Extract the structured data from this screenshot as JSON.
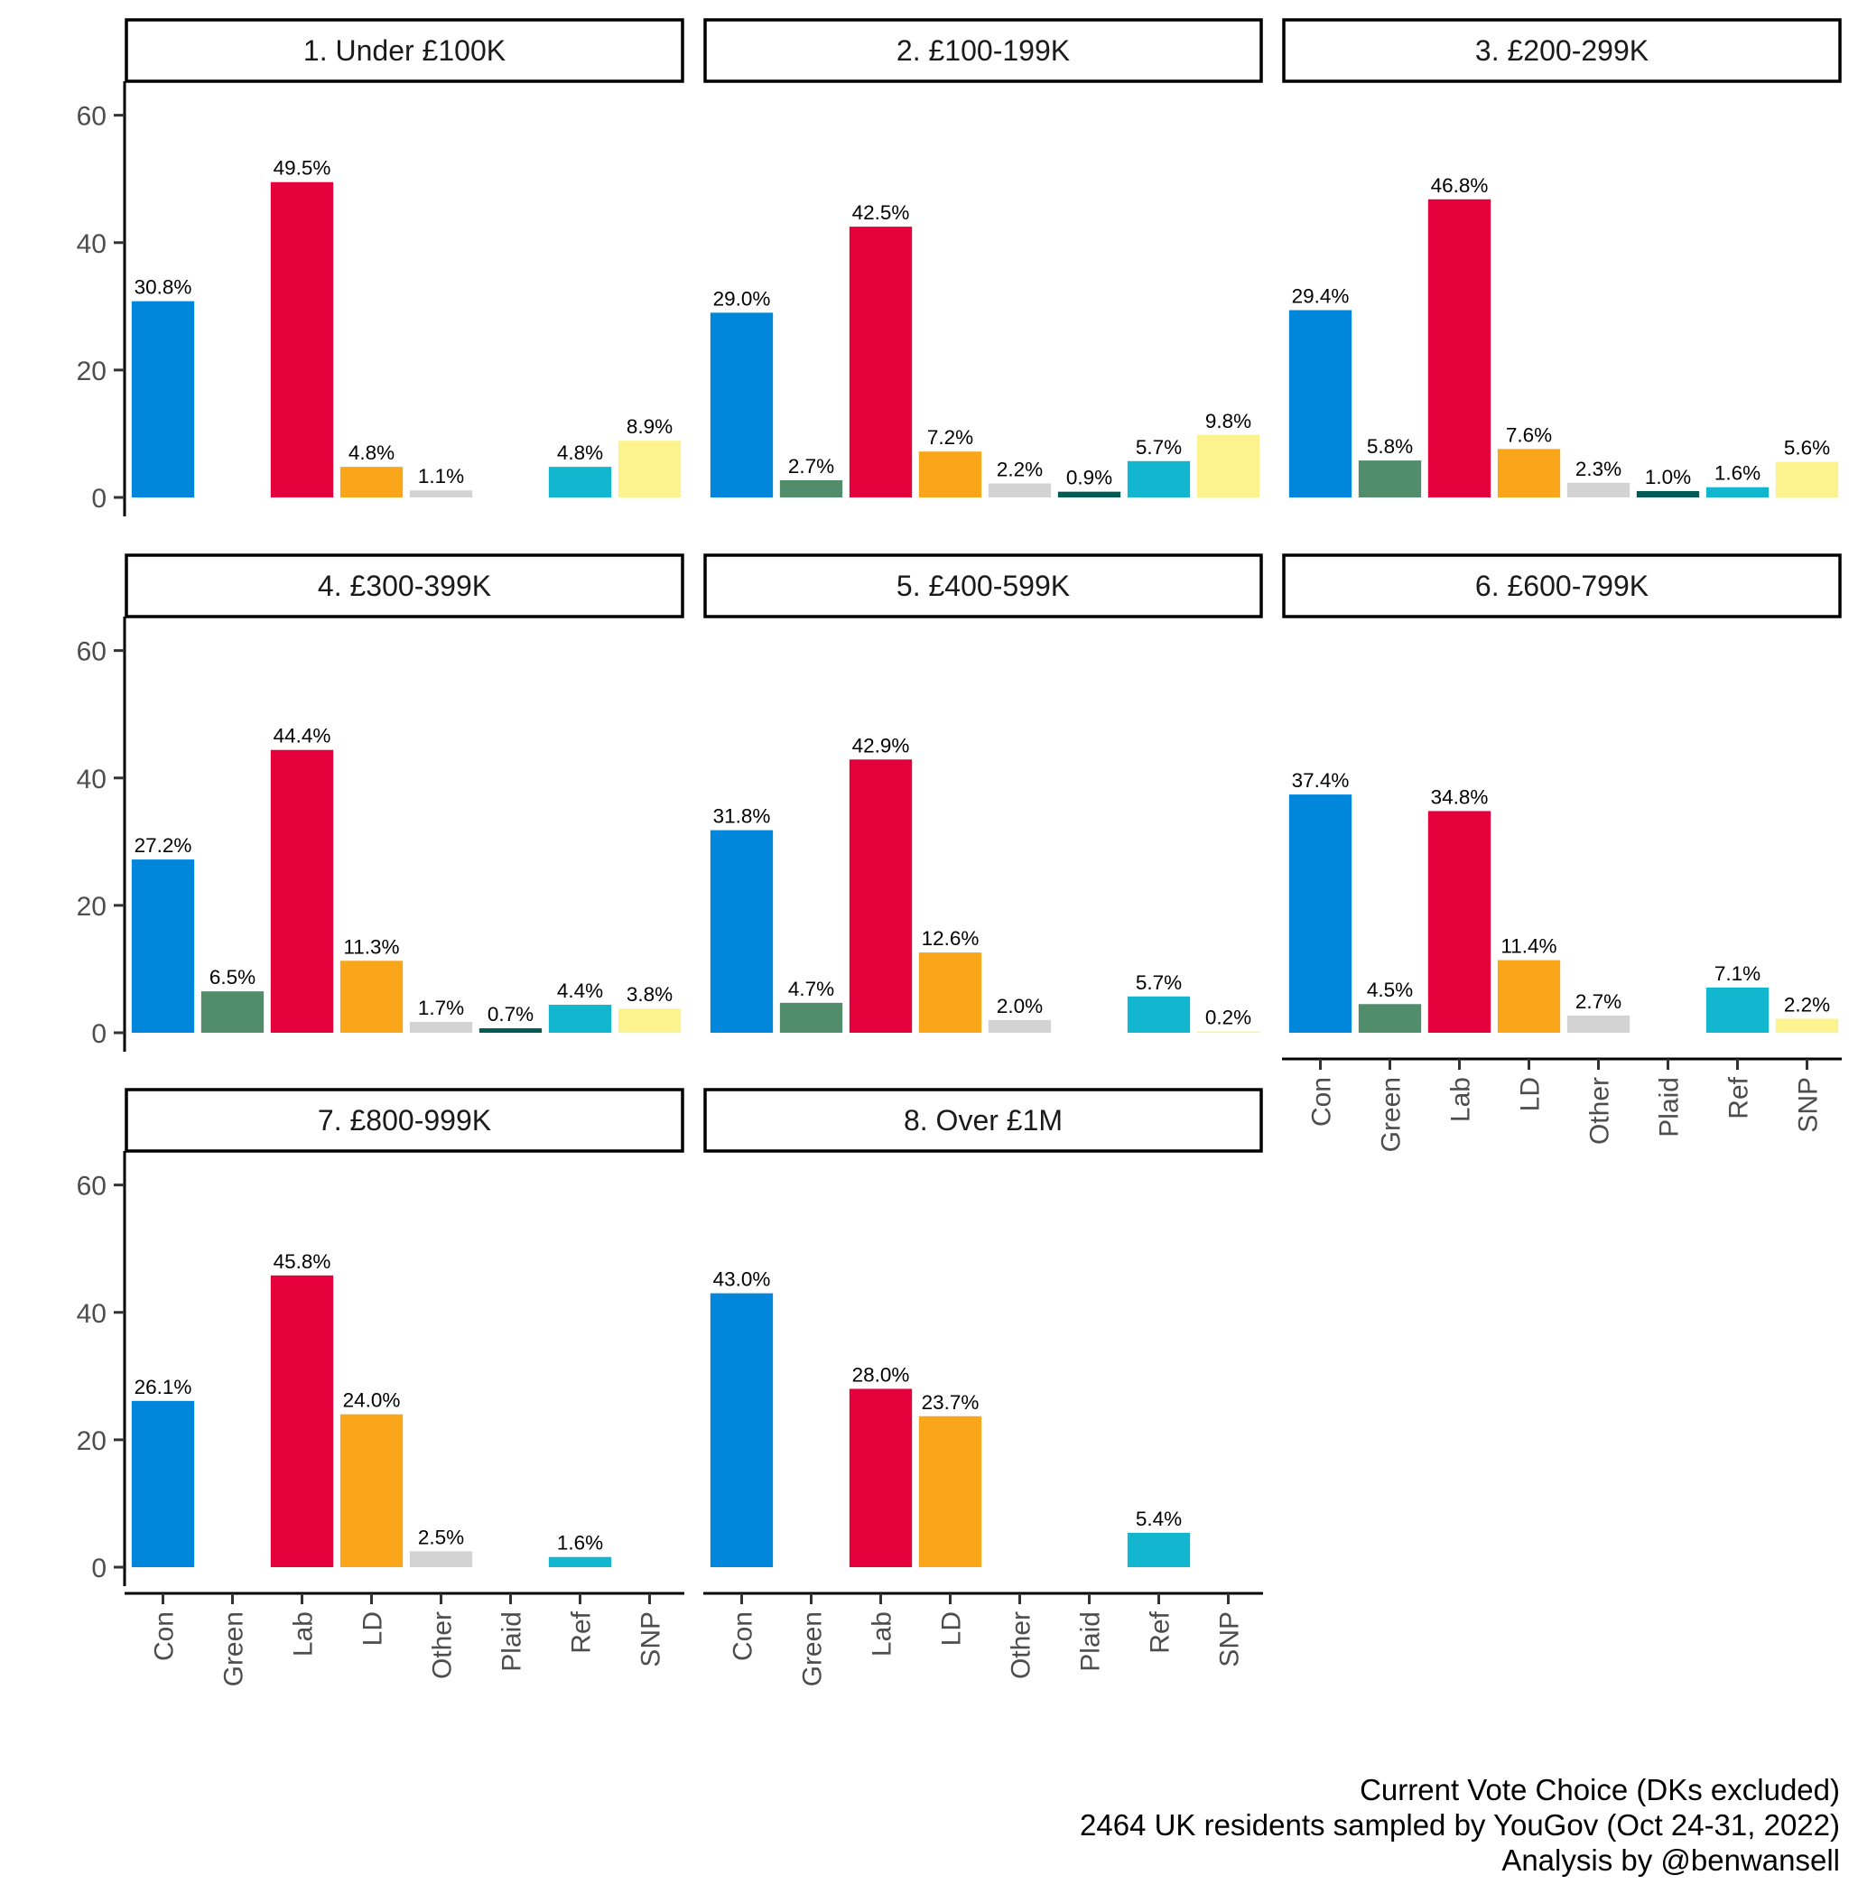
{
  "chart_data": {
    "type": "bar",
    "layout": "faceted",
    "categories": [
      "Con",
      "Green",
      "Lab",
      "LD",
      "Other",
      "Plaid",
      "Ref",
      "SNP"
    ],
    "colors": {
      "Con": "#0087DC",
      "Green": "#528D6B",
      "Lab": "#E4003B",
      "LD": "#FAA61A",
      "Other": "#D3D3D3",
      "Plaid": "#005B54",
      "Ref": "#12B6CF",
      "SNP": "#FDF38E"
    },
    "ylim": [
      0,
      68
    ],
    "yticks": [
      0,
      20,
      40,
      60
    ],
    "facets": [
      {
        "title": "1. Under £100K",
        "values": [
          30.8,
          null,
          49.5,
          4.8,
          1.1,
          null,
          4.8,
          8.9
        ],
        "labels": [
          "30.8%",
          "",
          "49.5%",
          "4.8%",
          "1.1%",
          "",
          "4.8%",
          "8.9%"
        ]
      },
      {
        "title": "2. £100-199K",
        "values": [
          29.0,
          2.7,
          42.5,
          7.2,
          2.2,
          0.9,
          5.7,
          9.8
        ],
        "labels": [
          "29.0%",
          "2.7%",
          "42.5%",
          "7.2%",
          "2.2%",
          "0.9%",
          "5.7%",
          "9.8%"
        ]
      },
      {
        "title": "3. £200-299K",
        "values": [
          29.4,
          5.8,
          46.8,
          7.6,
          2.3,
          1.0,
          1.6,
          5.6
        ],
        "labels": [
          "29.4%",
          "5.8%",
          "46.8%",
          "7.6%",
          "2.3%",
          "1.0%",
          "1.6%",
          "5.6%"
        ]
      },
      {
        "title": "4. £300-399K",
        "values": [
          27.2,
          6.5,
          44.4,
          11.3,
          1.7,
          0.7,
          4.4,
          3.8
        ],
        "labels": [
          "27.2%",
          "6.5%",
          "44.4%",
          "11.3%",
          "1.7%",
          "0.7%",
          "4.4%",
          "3.8%"
        ]
      },
      {
        "title": "5. £400-599K",
        "values": [
          31.8,
          4.7,
          42.9,
          12.6,
          2.0,
          null,
          5.7,
          0.2
        ],
        "labels": [
          "31.8%",
          "4.7%",
          "42.9%",
          "12.6%",
          "2.0%",
          "",
          "5.7%",
          "0.2%"
        ]
      },
      {
        "title": "6. £600-799K",
        "values": [
          37.4,
          4.5,
          34.8,
          11.4,
          2.7,
          null,
          7.1,
          2.2
        ],
        "labels": [
          "37.4%",
          "4.5%",
          "34.8%",
          "11.4%",
          "2.7%",
          "",
          "7.1%",
          "2.2%"
        ]
      },
      {
        "title": "7. £800-999K",
        "values": [
          26.1,
          null,
          45.8,
          24.0,
          2.5,
          null,
          1.6,
          null
        ],
        "labels": [
          "26.1%",
          "",
          "45.8%",
          "24.0%",
          "2.5%",
          "",
          "1.6%",
          ""
        ]
      },
      {
        "title": "8. Over £1M",
        "values": [
          43.0,
          null,
          28.0,
          23.7,
          null,
          null,
          5.4,
          null
        ],
        "labels": [
          "43.0%",
          "",
          "28.0%",
          "23.7%",
          "",
          "",
          "5.4%",
          ""
        ]
      }
    ],
    "caption": [
      "Current Vote Choice (DKs excluded)",
      "2464 UK residents sampled by YouGov (Oct 24-31, 2022)",
      "Analysis by @benwansell"
    ]
  }
}
